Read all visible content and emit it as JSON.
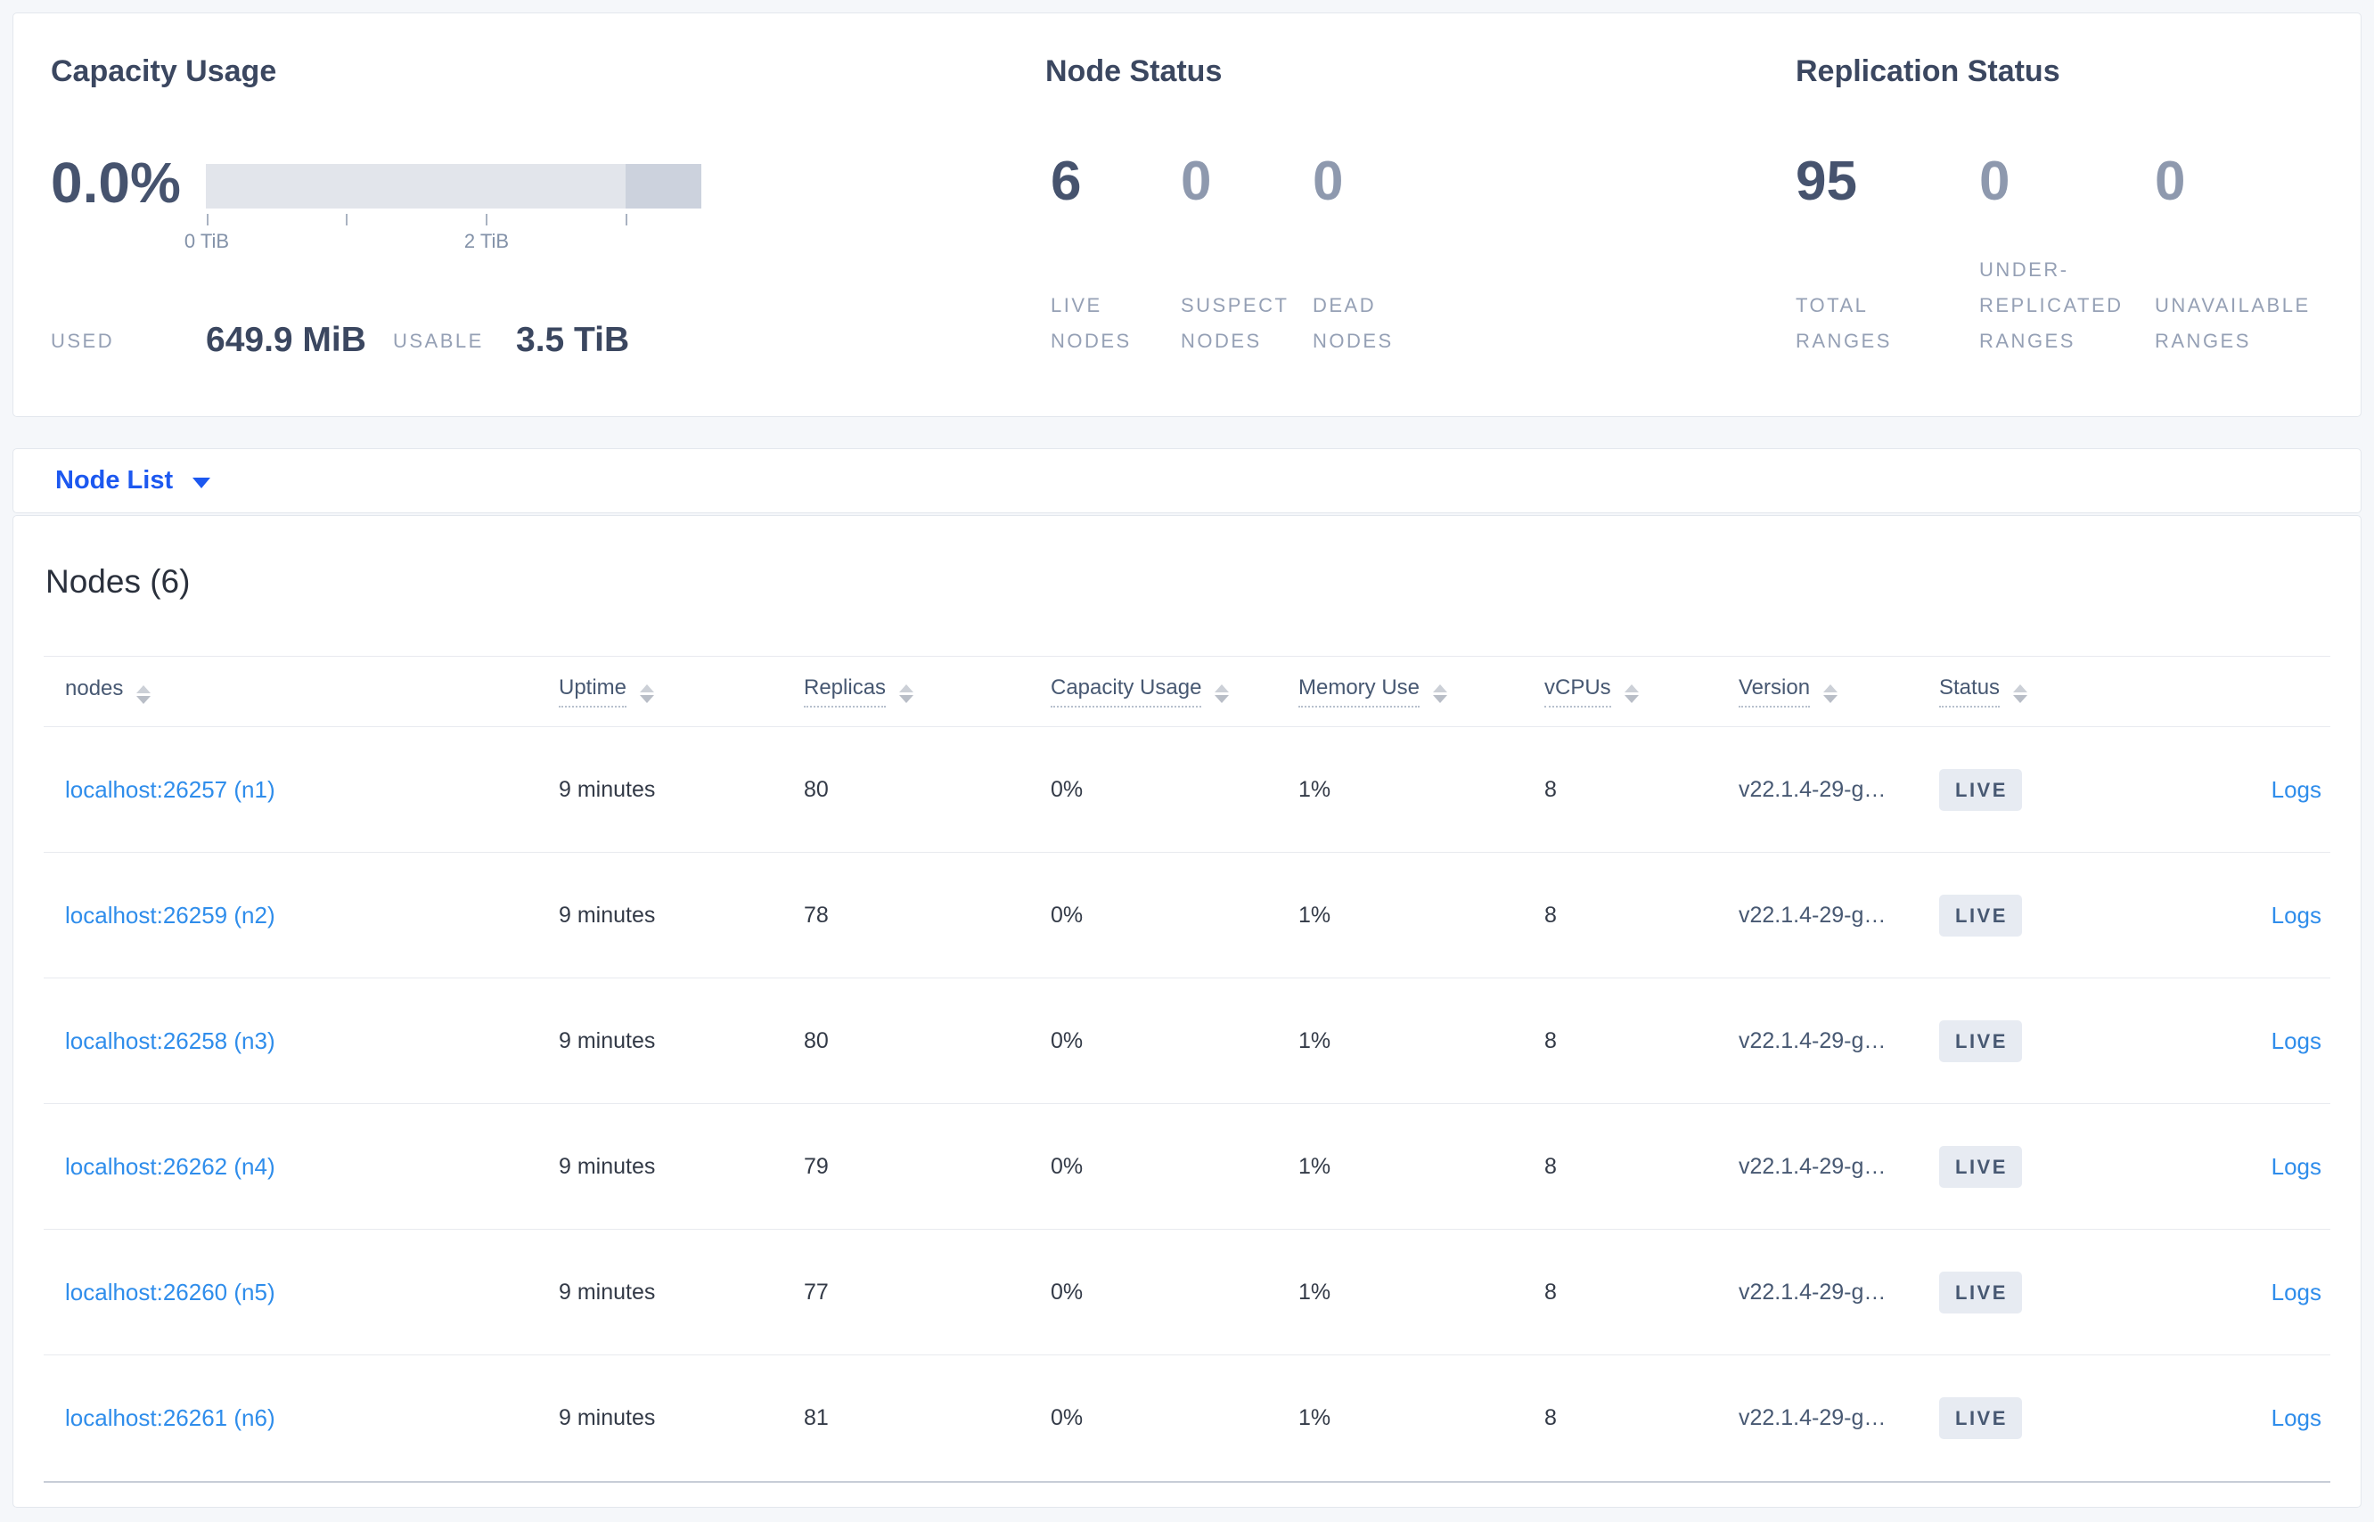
{
  "summary": {
    "capacity": {
      "title": "Capacity Usage",
      "percent_used": "0.0%",
      "axis_ticks": [
        "0 TiB",
        "2 TiB"
      ],
      "used_label": "USED",
      "used_value": "649.9 MiB",
      "usable_label": "USABLE",
      "usable_value": "3.5 TiB"
    },
    "node_status": {
      "title": "Node Status",
      "stats": [
        {
          "value": "6",
          "label": "LIVE NODES",
          "emphasized": true
        },
        {
          "value": "0",
          "label": "SUSPECT NODES",
          "emphasized": false
        },
        {
          "value": "0",
          "label": "DEAD NODES",
          "emphasized": false
        }
      ]
    },
    "replication": {
      "title": "Replication Status",
      "stats": [
        {
          "value": "95",
          "label": "TOTAL RANGES",
          "emphasized": true
        },
        {
          "value": "0",
          "label": "UNDER-REPLICATED RANGES",
          "emphasized": false
        },
        {
          "value": "0",
          "label": "UNAVAILABLE RANGES",
          "emphasized": false
        }
      ]
    }
  },
  "view_selector": {
    "label": "Node List",
    "icon": "chevron-down-icon"
  },
  "nodes_table": {
    "title": "Nodes (6)",
    "columns": [
      {
        "key": "node",
        "label": "nodes",
        "sortable": true,
        "tooltip_underline": false
      },
      {
        "key": "uptime",
        "label": "Uptime",
        "sortable": true,
        "tooltip_underline": true
      },
      {
        "key": "replicas",
        "label": "Replicas",
        "sortable": true,
        "tooltip_underline": true
      },
      {
        "key": "capacity",
        "label": "Capacity Usage",
        "sortable": true,
        "tooltip_underline": true
      },
      {
        "key": "memory",
        "label": "Memory Use",
        "sortable": true,
        "tooltip_underline": true
      },
      {
        "key": "vcpus",
        "label": "vCPUs",
        "sortable": true,
        "tooltip_underline": true
      },
      {
        "key": "version",
        "label": "Version",
        "sortable": true,
        "tooltip_underline": true
      },
      {
        "key": "status",
        "label": "Status",
        "sortable": true,
        "tooltip_underline": true
      }
    ],
    "rows": [
      {
        "node": "localhost:26257 (n1)",
        "uptime": "9 minutes",
        "replicas": "80",
        "capacity": "0%",
        "memory": "1%",
        "vcpus": "8",
        "version": "v22.1.4-29-g…",
        "status": "LIVE",
        "logs": "Logs"
      },
      {
        "node": "localhost:26259 (n2)",
        "uptime": "9 minutes",
        "replicas": "78",
        "capacity": "0%",
        "memory": "1%",
        "vcpus": "8",
        "version": "v22.1.4-29-g…",
        "status": "LIVE",
        "logs": "Logs"
      },
      {
        "node": "localhost:26258 (n3)",
        "uptime": "9 minutes",
        "replicas": "80",
        "capacity": "0%",
        "memory": "1%",
        "vcpus": "8",
        "version": "v22.1.4-29-g…",
        "status": "LIVE",
        "logs": "Logs"
      },
      {
        "node": "localhost:26262 (n4)",
        "uptime": "9 minutes",
        "replicas": "79",
        "capacity": "0%",
        "memory": "1%",
        "vcpus": "8",
        "version": "v22.1.4-29-g…",
        "status": "LIVE",
        "logs": "Logs"
      },
      {
        "node": "localhost:26260 (n5)",
        "uptime": "9 minutes",
        "replicas": "77",
        "capacity": "0%",
        "memory": "1%",
        "vcpus": "8",
        "version": "v22.1.4-29-g…",
        "status": "LIVE",
        "logs": "Logs"
      },
      {
        "node": "localhost:26261 (n6)",
        "uptime": "9 minutes",
        "replicas": "81",
        "capacity": "0%",
        "memory": "1%",
        "vcpus": "8",
        "version": "v22.1.4-29-g…",
        "status": "LIVE",
        "logs": "Logs"
      }
    ]
  },
  "colors": {
    "page_background": "#f5f7fa",
    "link_blue": "#2f8deb",
    "selector_blue": "#1c58f0",
    "badge_background": "#e7ebf2",
    "badge_text": "#475872",
    "capacity_bar_light": "#e2e5eb",
    "capacity_bar_dark": "#ccd2dd",
    "emphasized_number": "#46536e",
    "muted_number": "#8e99ae"
  },
  "icons": {
    "dropdown": "chevron-down-icon",
    "sort": "sort-arrows-icon"
  }
}
